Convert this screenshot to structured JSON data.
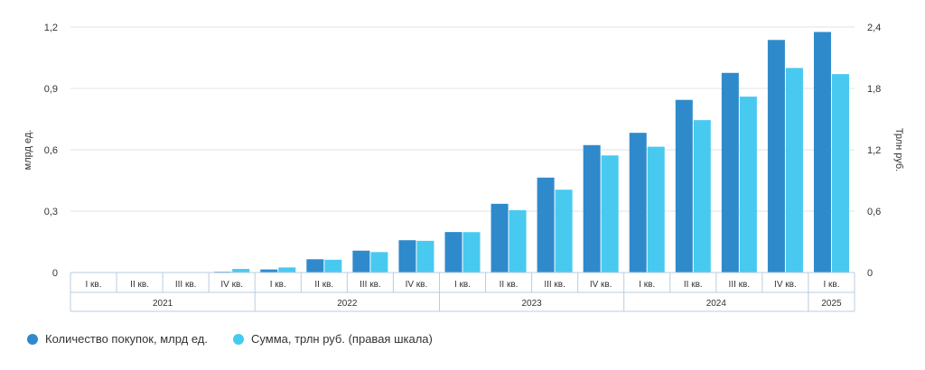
{
  "chart_data": {
    "type": "bar",
    "categories": [
      "I кв.",
      "II кв.",
      "III кв.",
      "IV кв.",
      "I кв.",
      "II кв.",
      "III кв.",
      "IV кв.",
      "I кв.",
      "II кв.",
      "III кв.",
      "IV кв.",
      "I кв.",
      "II кв.",
      "III кв.",
      "IV кв.",
      "I кв."
    ],
    "years": [
      {
        "label": "2021",
        "span": 4
      },
      {
        "label": "2022",
        "span": 4
      },
      {
        "label": "2023",
        "span": 4
      },
      {
        "label": "2024",
        "span": 4
      },
      {
        "label": "2025",
        "span": 1
      }
    ],
    "series": [
      {
        "name": "Количество покупок, млрд ед.",
        "axis": "left",
        "values": [
          0,
          0,
          0,
          0.004,
          0.015,
          0.065,
          0.107,
          0.158,
          0.198,
          0.336,
          0.464,
          0.623,
          0.683,
          0.844,
          0.976,
          1.137,
          1.176
        ],
        "color": "#2f8acb"
      },
      {
        "name": "Сумма, трлн руб. (правая шкала)",
        "axis": "right",
        "values": [
          0,
          0,
          0,
          0.035,
          0.05,
          0.125,
          0.2,
          0.31,
          0.395,
          0.61,
          0.81,
          1.145,
          1.23,
          1.49,
          1.72,
          2.0,
          1.94
        ],
        "color": "#48c9f0"
      }
    ],
    "y_left": {
      "label": "млрд ед.",
      "ticks": [
        "0",
        "0,3",
        "0,6",
        "0,9",
        "1,2"
      ],
      "range": [
        0,
        1.2
      ]
    },
    "y_right": {
      "label": "Трлн руб.",
      "ticks": [
        "0",
        "0,6",
        "1,2",
        "1,8",
        "2,4"
      ],
      "range": [
        0,
        2.4
      ]
    },
    "grid": true,
    "legend_position": "bottom-left"
  },
  "legend": [
    {
      "label": "Количество покупок, млрд ед.",
      "color": "#2f8acb"
    },
    {
      "label": "Сумма, трлн руб. (правая шкала)",
      "color": "#48c9f0"
    }
  ]
}
